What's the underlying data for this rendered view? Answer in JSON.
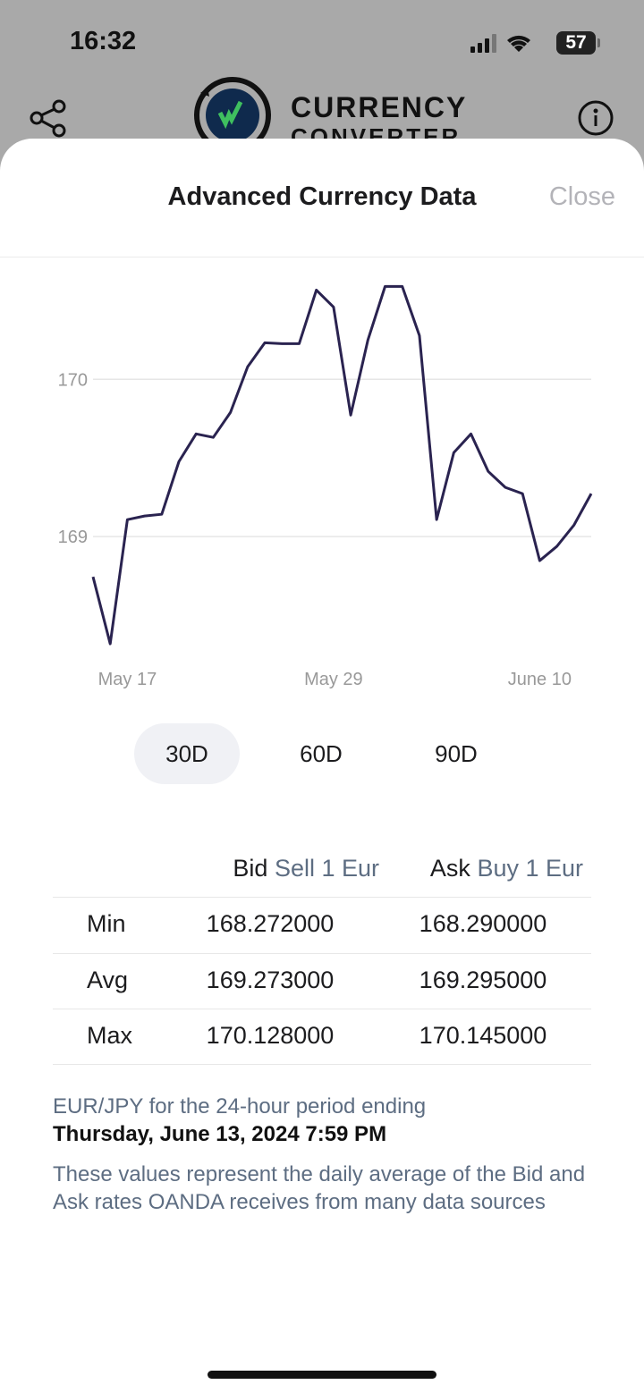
{
  "status_bar": {
    "time": "16:32",
    "battery": "57"
  },
  "header": {
    "logo_line1": "CURRENCY",
    "logo_line2": "CONVERTER"
  },
  "sheet": {
    "title": "Advanced Currency Data",
    "close": "Close"
  },
  "chart_data": {
    "type": "line",
    "categories": [
      null,
      null,
      "May 17",
      null,
      null,
      null,
      null,
      null,
      null,
      null,
      null,
      null,
      null,
      null,
      "May 29",
      null,
      null,
      null,
      null,
      null,
      null,
      null,
      null,
      null,
      null,
      null,
      "June 10",
      null,
      null,
      null
    ],
    "values": [
      168.744,
      168.318,
      169.108,
      169.131,
      169.142,
      169.477,
      169.653,
      169.631,
      169.79,
      170.08,
      170.233,
      170.227,
      170.227,
      170.568,
      170.46,
      169.773,
      170.25,
      170.591,
      170.591,
      170.278,
      169.108,
      169.534,
      169.653,
      169.415,
      169.313,
      169.273,
      168.847,
      168.938,
      169.074,
      169.273
    ],
    "color": "#2a2350",
    "ylim": [
      168.29,
      170.65
    ],
    "yticks": [
      169,
      170
    ],
    "grid": true
  },
  "range_buttons": [
    "30D",
    "60D",
    "90D"
  ],
  "selected_range": "30D",
  "table": {
    "header": [
      {
        "name": "Bid",
        "detail": "Sell 1 Eur"
      },
      {
        "name": "Ask",
        "detail": "Buy 1 Eur"
      }
    ],
    "rows": [
      [
        "Min",
        "168.272000",
        "168.290000"
      ],
      [
        "Avg",
        "169.273000",
        "169.295000"
      ],
      [
        "Max",
        "170.128000",
        "170.145000"
      ]
    ]
  },
  "footer": {
    "period": "EUR/JPY for the 24-hour period ending",
    "date": "Thursday, June 13, 2024 7:59 PM",
    "note": "These values represent the daily average of the Bid and Ask rates OANDA receives from many data sources"
  }
}
